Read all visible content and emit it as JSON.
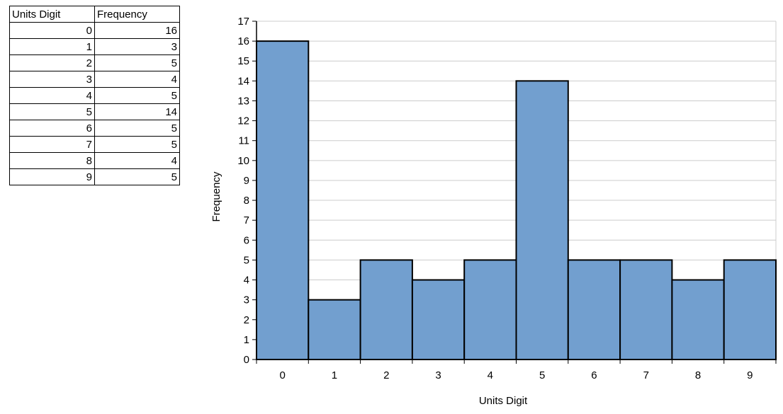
{
  "table": {
    "headers": [
      "Units Digit",
      "Frequency"
    ],
    "rows": [
      [
        "0",
        "16"
      ],
      [
        "1",
        "3"
      ],
      [
        "2",
        "5"
      ],
      [
        "3",
        "4"
      ],
      [
        "4",
        "5"
      ],
      [
        "5",
        "14"
      ],
      [
        "6",
        "5"
      ],
      [
        "7",
        "5"
      ],
      [
        "8",
        "4"
      ],
      [
        "9",
        "5"
      ]
    ]
  },
  "chart_data": {
    "type": "bar",
    "categories": [
      "0",
      "1",
      "2",
      "3",
      "4",
      "5",
      "6",
      "7",
      "8",
      "9"
    ],
    "values": [
      16,
      3,
      5,
      4,
      5,
      14,
      5,
      5,
      4,
      5
    ],
    "title": "",
    "xlabel": "Units Digit",
    "ylabel": "Frequency",
    "ylim": [
      0,
      17
    ],
    "ytick_step": 1,
    "grid": true,
    "legend": "none",
    "colors": {
      "bar_fill": "#729FCF",
      "bar_border": "#000000",
      "gridline": "#CCCCCC",
      "axis": "#000000",
      "text": "#000000"
    }
  }
}
